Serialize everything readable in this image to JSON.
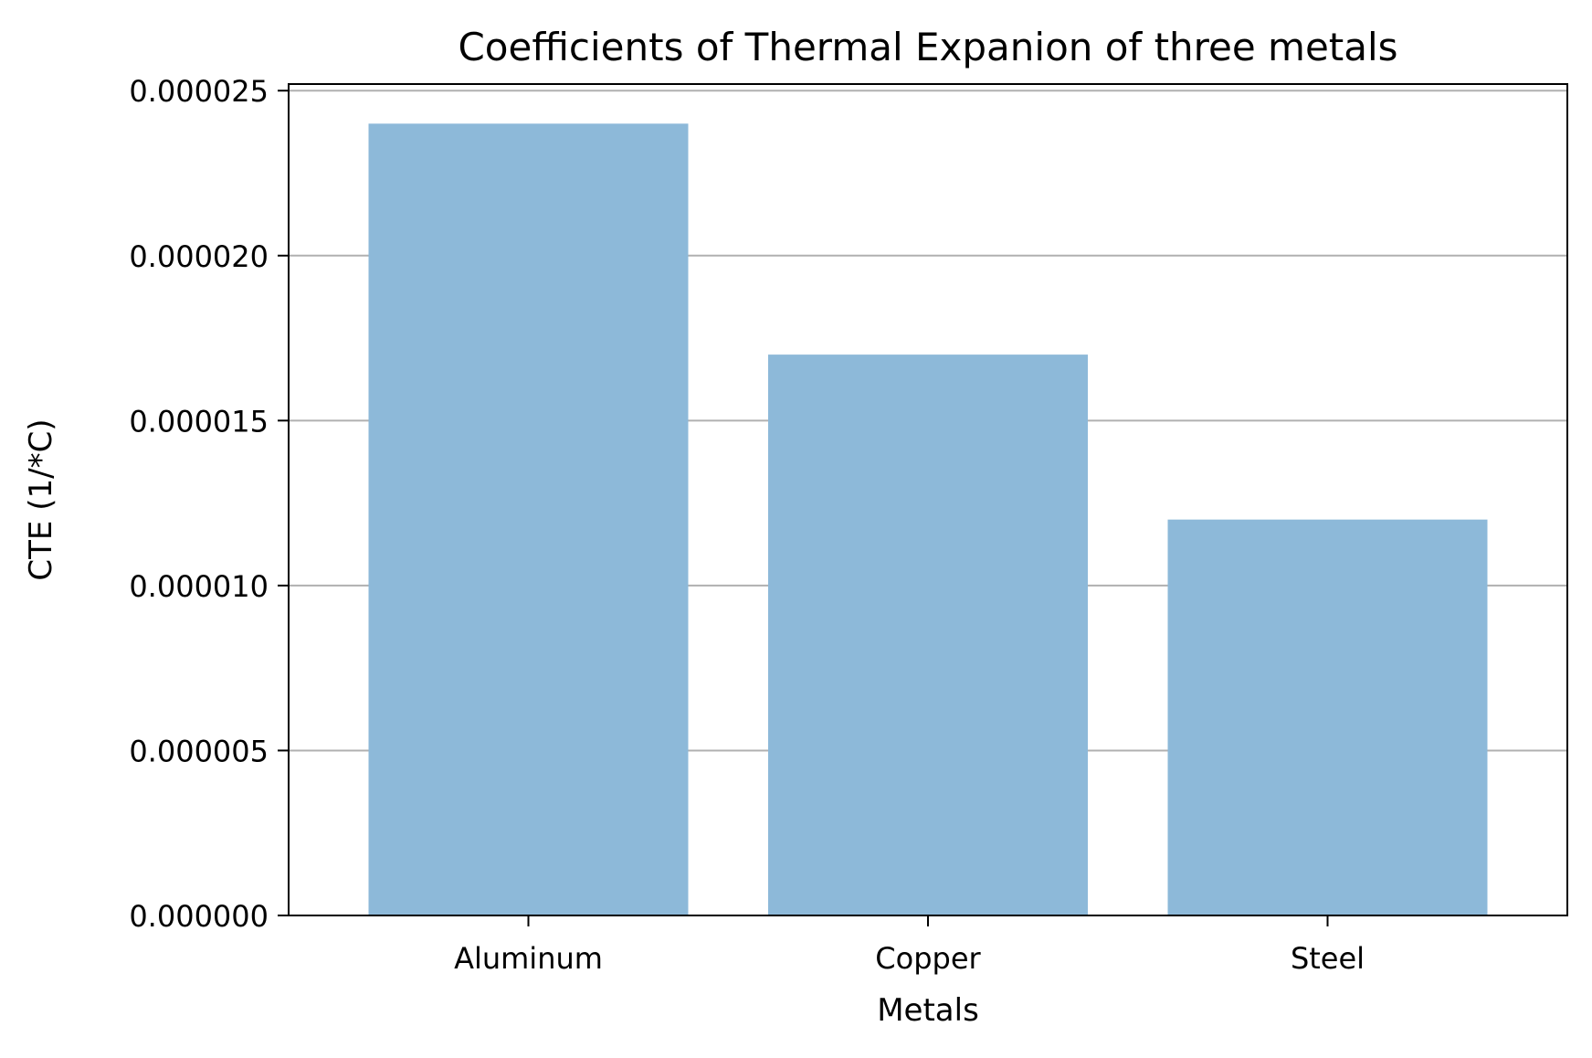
{
  "chart_data": {
    "type": "bar",
    "title": "Coefficients of Thermal Expanion of three metals",
    "xlabel": "Metals",
    "ylabel": "CTE (1/*C)",
    "categories": [
      "Aluminum",
      "Copper",
      "Steel"
    ],
    "values": [
      2.4e-05,
      1.7e-05,
      1.2e-05
    ],
    "ylim": [
      0,
      2.52e-05
    ],
    "yticks": [
      0,
      5e-06,
      1e-05,
      1.5e-05,
      2e-05,
      2.5e-05
    ],
    "ytick_labels": [
      "0.000000",
      "0.000005",
      "0.000010",
      "0.000015",
      "0.000020",
      "0.000025"
    ],
    "grid": {
      "axis": "y",
      "visible": true,
      "color": "#b0b0b0"
    },
    "bar_color": "#8db9d9",
    "legend": "none"
  }
}
